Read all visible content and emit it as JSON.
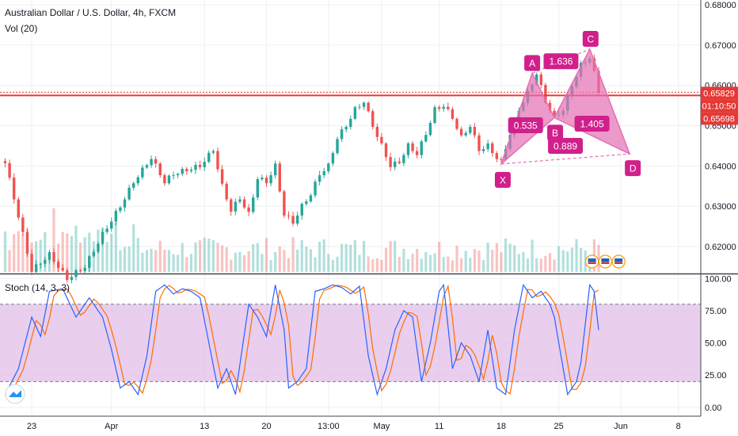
{
  "header": {
    "title": "Australian Dollar / U.S. Dollar, 4h, FXCM",
    "volume_label": "Vol (20)",
    "stoch_label": "Stoch (14, 3, 3)"
  },
  "colors": {
    "up": "#26a69a",
    "down": "#ef5350",
    "pattern": "#d11f8c",
    "pattern_fill": "#e46fb4",
    "hline": "#e53935",
    "stoch_k": "#2962ff",
    "stoch_d": "#ff6d00",
    "stoch_band": "#e1bee7"
  },
  "chart_data": {
    "type": "candlestick",
    "price_axis": {
      "ticks": [
        "0.68000",
        "0.67000",
        "0.66000",
        "0.65000",
        "0.64000",
        "0.63000",
        "0.62000"
      ],
      "ylim": [
        0.6137,
        0.6812
      ]
    },
    "price_labels": {
      "current": "0.65829",
      "countdown": "01:10:50",
      "line": "0.65698"
    },
    "horizontal_line": 0.6575,
    "x_axis": {
      "labels": [
        "23",
        "Apr",
        "13",
        "20",
        "13:00",
        "May",
        "11",
        "18",
        "25",
        "Jun",
        "8"
      ],
      "label_index": [
        6,
        24,
        45,
        59,
        73,
        85,
        98,
        112,
        125,
        139,
        152
      ]
    },
    "close_anchors": [
      [
        0,
        0.641
      ],
      [
        6,
        0.614
      ],
      [
        10,
        0.618
      ],
      [
        14,
        0.612
      ],
      [
        18,
        0.615
      ],
      [
        22,
        0.623
      ],
      [
        26,
        0.63
      ],
      [
        29,
        0.636
      ],
      [
        33,
        0.642
      ],
      [
        36,
        0.636
      ],
      [
        38,
        0.638
      ],
      [
        41,
        0.639
      ],
      [
        44,
        0.64
      ],
      [
        47,
        0.644
      ],
      [
        49,
        0.635
      ],
      [
        51,
        0.629
      ],
      [
        53,
        0.632
      ],
      [
        55,
        0.628
      ],
      [
        57,
        0.637
      ],
      [
        59,
        0.636
      ],
      [
        61,
        0.64
      ],
      [
        63,
        0.628
      ],
      [
        65,
        0.626
      ],
      [
        67,
        0.63
      ],
      [
        69,
        0.633
      ],
      [
        71,
        0.638
      ],
      [
        73,
        0.64
      ],
      [
        75,
        0.647
      ],
      [
        77,
        0.65
      ],
      [
        79,
        0.654
      ],
      [
        81,
        0.656
      ],
      [
        83,
        0.65
      ],
      [
        85,
        0.645
      ],
      [
        87,
        0.64
      ],
      [
        89,
        0.641
      ],
      [
        91,
        0.645
      ],
      [
        93,
        0.643
      ],
      [
        95,
        0.648
      ],
      [
        97,
        0.654
      ],
      [
        99,
        0.655
      ],
      [
        101,
        0.652
      ],
      [
        103,
        0.647
      ],
      [
        105,
        0.65
      ],
      [
        107,
        0.644
      ],
      [
        109,
        0.645
      ],
      [
        111,
        0.642
      ],
      [
        112,
        0.641
      ],
      [
        114,
        0.648
      ],
      [
        116,
        0.654
      ],
      [
        118,
        0.658
      ],
      [
        120,
        0.663
      ],
      [
        122,
        0.656
      ],
      [
        124,
        0.652
      ],
      [
        126,
        0.654
      ],
      [
        128,
        0.66
      ],
      [
        130,
        0.665
      ],
      [
        132,
        0.667
      ],
      [
        133,
        0.663
      ],
      [
        134,
        0.6582
      ]
    ],
    "volume_ylim": [
      0,
      10
    ],
    "stoch": {
      "ticks": [
        "100.00",
        "75.00",
        "50.00",
        "25.00",
        "0.00"
      ],
      "ylim": [
        -5,
        102
      ],
      "bands": [
        20,
        80
      ],
      "k_anchors": [
        [
          0,
          10
        ],
        [
          3,
          30
        ],
        [
          6,
          70
        ],
        [
          8,
          55
        ],
        [
          10,
          90
        ],
        [
          13,
          92
        ],
        [
          16,
          70
        ],
        [
          19,
          85
        ],
        [
          22,
          70
        ],
        [
          24,
          45
        ],
        [
          26,
          15
        ],
        [
          28,
          20
        ],
        [
          30,
          10
        ],
        [
          32,
          40
        ],
        [
          34,
          90
        ],
        [
          36,
          95
        ],
        [
          38,
          88
        ],
        [
          40,
          92
        ],
        [
          42,
          90
        ],
        [
          44,
          85
        ],
        [
          46,
          50
        ],
        [
          48,
          15
        ],
        [
          50,
          30
        ],
        [
          52,
          10
        ],
        [
          55,
          80
        ],
        [
          57,
          70
        ],
        [
          59,
          55
        ],
        [
          61,
          95
        ],
        [
          63,
          60
        ],
        [
          64,
          15
        ],
        [
          66,
          20
        ],
        [
          68,
          30
        ],
        [
          70,
          90
        ],
        [
          72,
          92
        ],
        [
          74,
          95
        ],
        [
          76,
          93
        ],
        [
          78,
          88
        ],
        [
          80,
          94
        ],
        [
          82,
          40
        ],
        [
          84,
          10
        ],
        [
          86,
          30
        ],
        [
          88,
          60
        ],
        [
          90,
          75
        ],
        [
          92,
          70
        ],
        [
          94,
          20
        ],
        [
          96,
          50
        ],
        [
          98,
          90
        ],
        [
          99,
          95
        ],
        [
          101,
          30
        ],
        [
          103,
          50
        ],
        [
          105,
          40
        ],
        [
          107,
          20
        ],
        [
          109,
          60
        ],
        [
          111,
          15
        ],
        [
          113,
          10
        ],
        [
          115,
          60
        ],
        [
          117,
          95
        ],
        [
          119,
          85
        ],
        [
          121,
          90
        ],
        [
          123,
          80
        ],
        [
          124,
          70
        ],
        [
          126,
          30
        ],
        [
          127,
          10
        ],
        [
          129,
          20
        ],
        [
          130,
          35
        ],
        [
          132,
          95
        ],
        [
          133,
          90
        ],
        [
          134,
          60
        ]
      ]
    },
    "harmonic_pattern": {
      "points": [
        {
          "label": "X",
          "i": 112,
          "price": 0.6405
        },
        {
          "label": "A",
          "i": 119,
          "price": 0.663
        },
        {
          "label": "B",
          "i": 124,
          "price": 0.652
        },
        {
          "label": "C",
          "i": 132,
          "price": 0.669
        },
        {
          "label": "D",
          "i": 141,
          "price": 0.643
        }
      ],
      "ratios": [
        {
          "label": "1.636",
          "i": 125.5,
          "price": 0.666
        },
        {
          "label": "0.535",
          "i": 117.5,
          "price": 0.6501
        },
        {
          "label": "1.405",
          "i": 132.5,
          "price": 0.6505
        },
        {
          "label": "0.889",
          "i": 126.5,
          "price": 0.645
        }
      ]
    }
  }
}
